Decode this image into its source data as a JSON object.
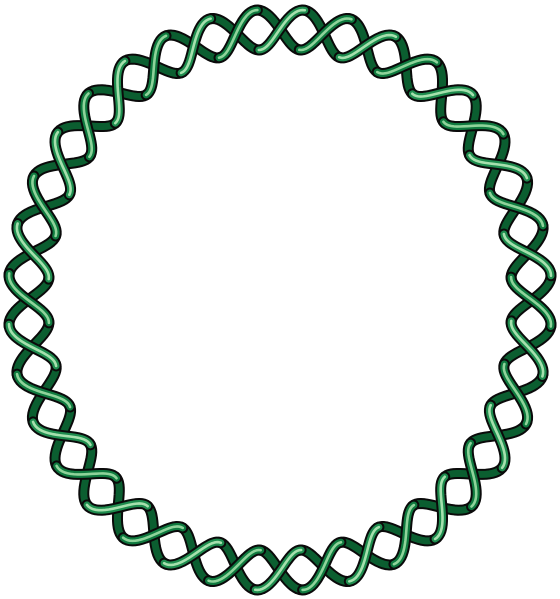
{
  "diagram": {
    "type": "circular-dna-double-helix",
    "helical_turns": 18,
    "strands": [
      {
        "name": "",
        "color": "#0f7a3f",
        "highlight": "#8fd39a"
      },
      {
        "name": "",
        "color": "#1e8c4e",
        "highlight": "#a6e0ad"
      }
    ],
    "outline_color": "#0a0a0a",
    "background": "#ffffff"
  }
}
